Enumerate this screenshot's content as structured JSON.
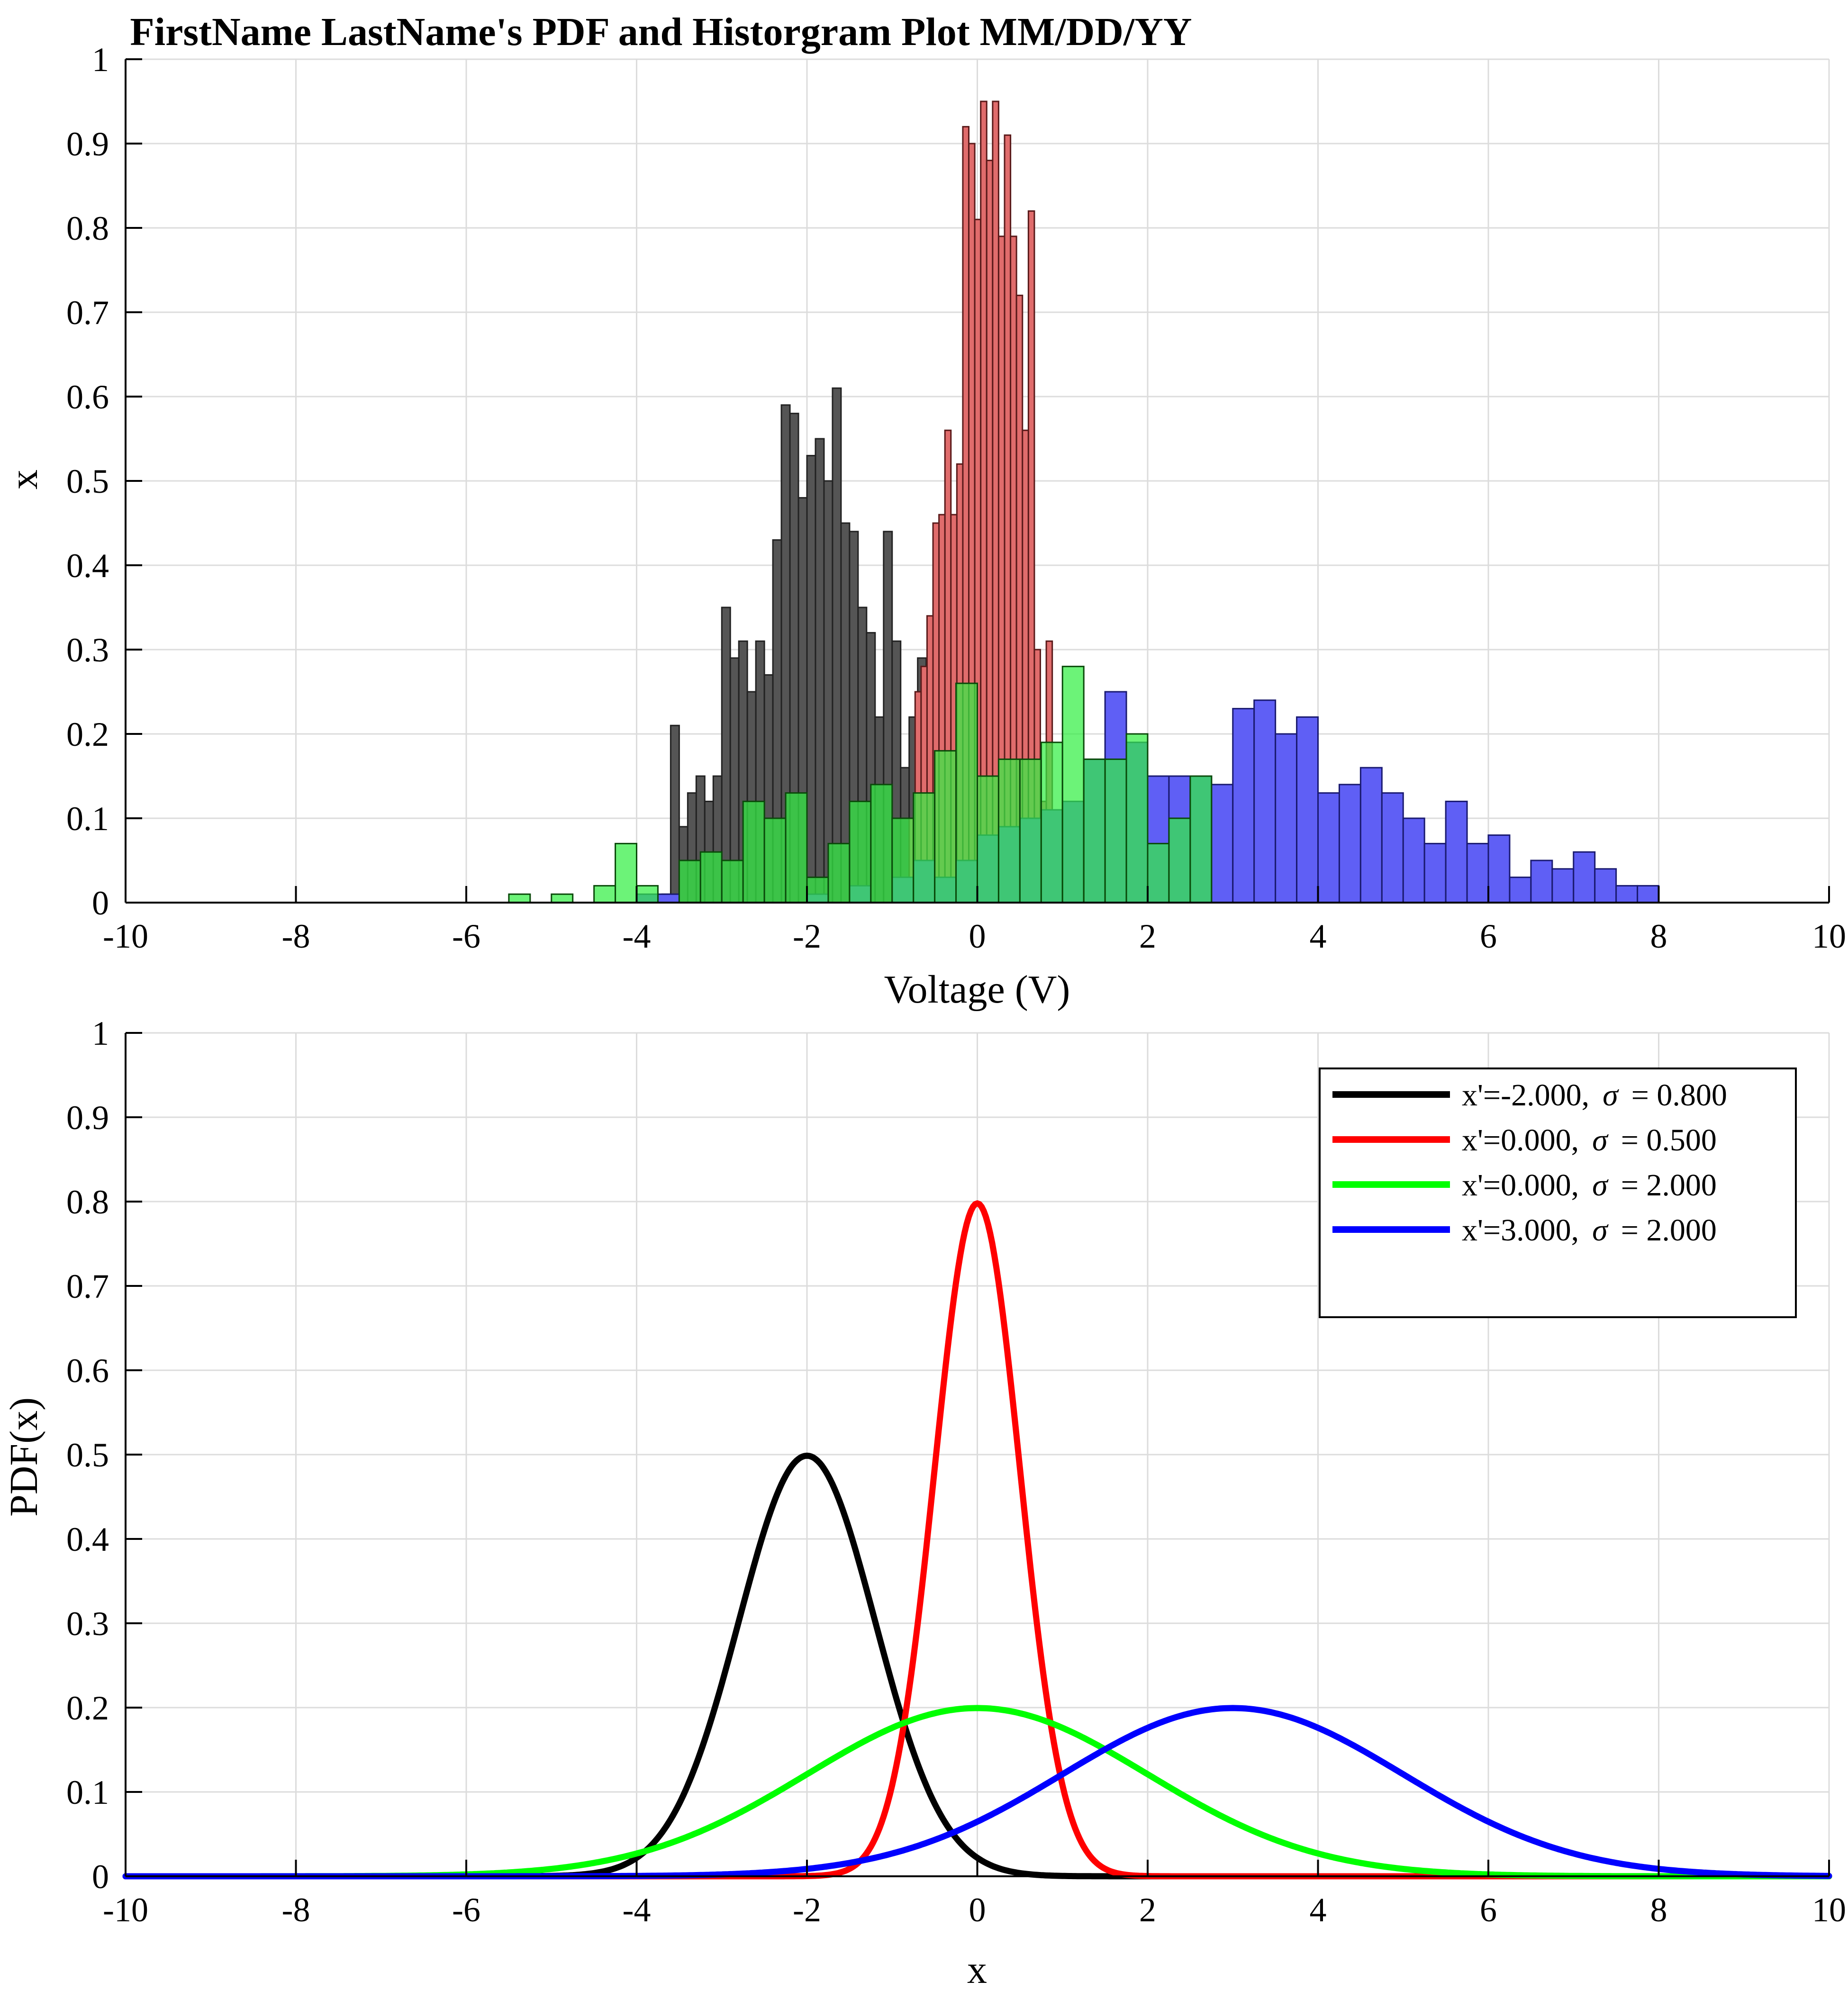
{
  "chart_data": [
    {
      "type": "bar",
      "title": "FirstName LastName's PDF and Historgram Plot MM/DD/YY",
      "xlabel": "Voltage (V)",
      "ylabel": "x",
      "xlim": [
        -10,
        10
      ],
      "ylim": [
        0,
        1
      ],
      "xticks": [
        "-10",
        "-8",
        "-6",
        "-4",
        "-2",
        "0",
        "2",
        "4",
        "6",
        "8",
        "10"
      ],
      "yticks": [
        "0",
        "0.1",
        "0.2",
        "0.3",
        "0.4",
        "0.5",
        "0.6",
        "0.7",
        "0.8",
        "0.9",
        "1"
      ],
      "grid": true,
      "series": [
        {
          "color": "#555555",
          "stroke": "#222222",
          "bin_width": 0.1,
          "bins": [
            [
              -3.7,
              0.01
            ],
            [
              -3.6,
              0.21
            ],
            [
              -3.5,
              0.09
            ],
            [
              -3.4,
              0.13
            ],
            [
              -3.3,
              0.15
            ],
            [
              -3.2,
              0.12
            ],
            [
              -3.1,
              0.15
            ],
            [
              -3.0,
              0.35
            ],
            [
              -2.9,
              0.29
            ],
            [
              -2.8,
              0.31
            ],
            [
              -2.7,
              0.25
            ],
            [
              -2.6,
              0.31
            ],
            [
              -2.5,
              0.27
            ],
            [
              -2.4,
              0.43
            ],
            [
              -2.3,
              0.59
            ],
            [
              -2.2,
              0.58
            ],
            [
              -2.1,
              0.48
            ],
            [
              -2.0,
              0.53
            ],
            [
              -1.9,
              0.55
            ],
            [
              -1.8,
              0.5
            ],
            [
              -1.7,
              0.61
            ],
            [
              -1.6,
              0.45
            ],
            [
              -1.5,
              0.44
            ],
            [
              -1.4,
              0.35
            ],
            [
              -1.3,
              0.32
            ],
            [
              -1.2,
              0.22
            ],
            [
              -1.1,
              0.44
            ],
            [
              -1.0,
              0.31
            ],
            [
              -0.9,
              0.16
            ],
            [
              -0.8,
              0.22
            ],
            [
              -0.7,
              0.29
            ],
            [
              -0.6,
              0.2
            ],
            [
              -0.5,
              0.14
            ],
            [
              -0.4,
              0.08
            ],
            [
              -0.3,
              0.05
            ]
          ]
        },
        {
          "color": "#e06c6c",
          "stroke": "#5a1a1a",
          "bin_width": 0.07,
          "bins": [
            [
              -0.8,
              0.1
            ],
            [
              -0.73,
              0.25
            ],
            [
              -0.66,
              0.28
            ],
            [
              -0.59,
              0.34
            ],
            [
              -0.52,
              0.45
            ],
            [
              -0.45,
              0.46
            ],
            [
              -0.38,
              0.56
            ],
            [
              -0.31,
              0.46
            ],
            [
              -0.24,
              0.52
            ],
            [
              -0.17,
              0.92
            ],
            [
              -0.1,
              0.9
            ],
            [
              -0.03,
              0.81
            ],
            [
              0.04,
              0.95
            ],
            [
              0.11,
              0.88
            ],
            [
              0.18,
              0.95
            ],
            [
              0.25,
              0.79
            ],
            [
              0.32,
              0.91
            ],
            [
              0.39,
              0.79
            ],
            [
              0.46,
              0.72
            ],
            [
              0.53,
              0.56
            ],
            [
              0.6,
              0.82
            ],
            [
              0.67,
              0.3
            ],
            [
              0.74,
              0.12
            ],
            [
              0.81,
              0.31
            ],
            [
              0.88,
              0.1
            ]
          ]
        },
        {
          "color": "#5f5ff5",
          "stroke": "#1a1a70",
          "bin_width": 0.25,
          "bins": [
            [
              -4.0,
              0.01
            ],
            [
              -3.75,
              0.01
            ],
            [
              -2.0,
              0.01
            ],
            [
              -1.5,
              0.02
            ],
            [
              -1.0,
              0.03
            ],
            [
              -0.75,
              0.05
            ],
            [
              -0.5,
              0.03
            ],
            [
              -0.25,
              0.05
            ],
            [
              0.0,
              0.08
            ],
            [
              0.25,
              0.09
            ],
            [
              0.5,
              0.1
            ],
            [
              0.75,
              0.11
            ],
            [
              1.0,
              0.12
            ],
            [
              1.25,
              0.17
            ],
            [
              1.5,
              0.25
            ],
            [
              1.75,
              0.19
            ],
            [
              2.0,
              0.15
            ],
            [
              2.25,
              0.15
            ],
            [
              2.5,
              0.15
            ],
            [
              2.75,
              0.14
            ],
            [
              3.0,
              0.23
            ],
            [
              3.25,
              0.24
            ],
            [
              3.5,
              0.2
            ],
            [
              3.75,
              0.22
            ],
            [
              4.0,
              0.13
            ],
            [
              4.25,
              0.14
            ],
            [
              4.5,
              0.16
            ],
            [
              4.75,
              0.13
            ],
            [
              5.0,
              0.1
            ],
            [
              5.25,
              0.07
            ],
            [
              5.5,
              0.12
            ],
            [
              5.75,
              0.07
            ],
            [
              6.0,
              0.08
            ],
            [
              6.25,
              0.03
            ],
            [
              6.5,
              0.05
            ],
            [
              6.75,
              0.04
            ],
            [
              7.0,
              0.06
            ],
            [
              7.25,
              0.04
            ],
            [
              7.5,
              0.02
            ],
            [
              7.75,
              0.02
            ]
          ]
        },
        {
          "color": "#33ee44",
          "stroke": "#0a4a0a",
          "opacity": 0.72,
          "bin_width": 0.25,
          "bins": [
            [
              -5.5,
              0.01
            ],
            [
              -5.0,
              0.01
            ],
            [
              -4.5,
              0.02
            ],
            [
              -4.25,
              0.07
            ],
            [
              -4.0,
              0.02
            ],
            [
              -3.5,
              0.05
            ],
            [
              -3.25,
              0.06
            ],
            [
              -3.0,
              0.05
            ],
            [
              -2.75,
              0.12
            ],
            [
              -2.5,
              0.1
            ],
            [
              -2.25,
              0.13
            ],
            [
              -2.0,
              0.03
            ],
            [
              -1.75,
              0.07
            ],
            [
              -1.5,
              0.12
            ],
            [
              -1.25,
              0.14
            ],
            [
              -1.0,
              0.1
            ],
            [
              -0.75,
              0.13
            ],
            [
              -0.5,
              0.18
            ],
            [
              -0.25,
              0.26
            ],
            [
              0.0,
              0.15
            ],
            [
              0.25,
              0.17
            ],
            [
              0.5,
              0.17
            ],
            [
              0.75,
              0.19
            ],
            [
              1.0,
              0.28
            ],
            [
              1.25,
              0.17
            ],
            [
              1.5,
              0.17
            ],
            [
              1.75,
              0.2
            ],
            [
              2.0,
              0.07
            ],
            [
              2.25,
              0.1
            ],
            [
              2.5,
              0.15
            ]
          ]
        }
      ]
    },
    {
      "type": "line",
      "xlabel": "x",
      "ylabel": "PDF(x)",
      "xlim": [
        -10,
        10
      ],
      "ylim": [
        0,
        1
      ],
      "xticks": [
        "-10",
        "-8",
        "-6",
        "-4",
        "-2",
        "0",
        "2",
        "4",
        "6",
        "8",
        "10"
      ],
      "yticks": [
        "0",
        "0.1",
        "0.2",
        "0.3",
        "0.4",
        "0.5",
        "0.6",
        "0.7",
        "0.8",
        "0.9",
        "1"
      ],
      "grid": true,
      "legend_position": "top-right",
      "series": [
        {
          "label_main": "x'=-2.000,",
          "sigma_symbol": "σ",
          "label_sigma": "=  0.800",
          "mean": -2.0,
          "sigma": 0.8,
          "color": "#000000"
        },
        {
          "label_main": "x'=0.000,",
          "sigma_symbol": "σ",
          "label_sigma": "=  0.500",
          "mean": 0.0,
          "sigma": 0.5,
          "color": "#ff0000"
        },
        {
          "label_main": "x'=0.000,",
          "sigma_symbol": "σ",
          "label_sigma": "=  2.000",
          "mean": 0.0,
          "sigma": 2.0,
          "color": "#00ff00"
        },
        {
          "label_main": "x'=3.000,",
          "sigma_symbol": "σ",
          "label_sigma": "=  2.000",
          "mean": 3.0,
          "sigma": 2.0,
          "color": "#0000ff"
        }
      ]
    }
  ]
}
